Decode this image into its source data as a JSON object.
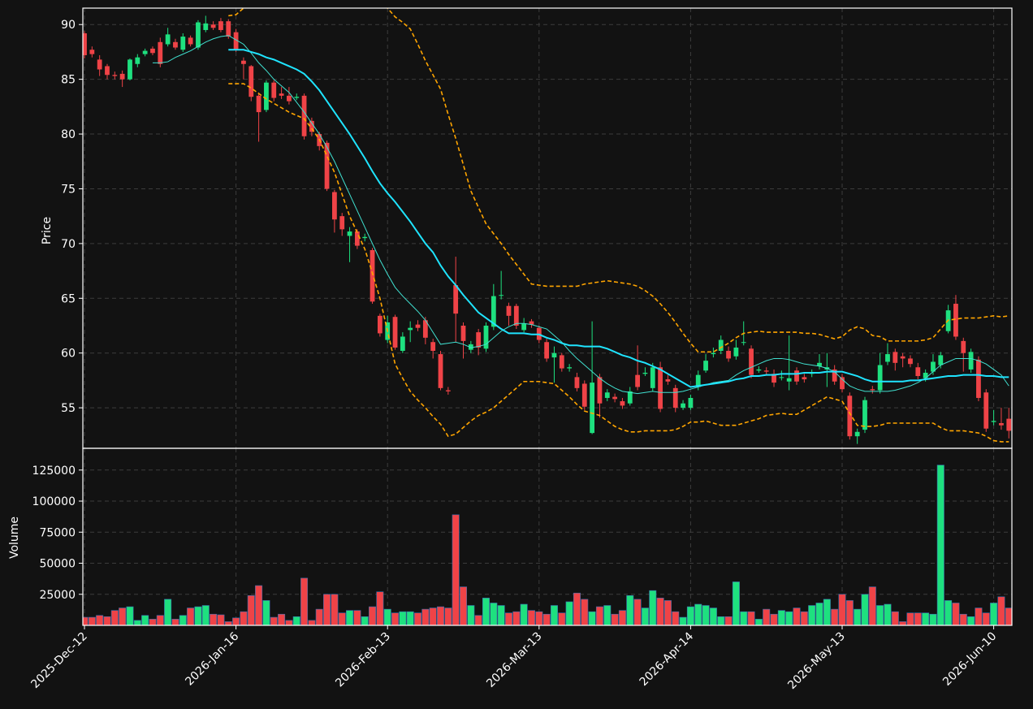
{
  "chart_data": {
    "type": "candlestick",
    "categories": [
      "2025-Dec-12",
      null,
      null,
      null,
      null,
      null,
      null,
      null,
      null,
      null,
      null,
      null,
      null,
      null,
      null,
      null,
      null,
      null,
      null,
      null,
      "2026-Jan-16",
      null,
      null,
      null,
      null,
      null,
      null,
      null,
      null,
      null,
      null,
      null,
      null,
      null,
      null,
      null,
      null,
      null,
      null,
      null,
      "2026-Feb-13",
      null,
      null,
      null,
      null,
      null,
      null,
      null,
      null,
      null,
      null,
      null,
      null,
      null,
      null,
      null,
      null,
      null,
      null,
      null,
      "2026-Mar-13",
      null,
      null,
      null,
      null,
      null,
      null,
      null,
      null,
      null,
      null,
      null,
      null,
      null,
      null,
      null,
      null,
      null,
      null,
      null,
      "2026-Apr-14",
      null,
      null,
      null,
      null,
      null,
      null,
      null,
      null,
      null,
      null,
      null,
      null,
      null,
      null,
      null,
      null,
      null,
      null,
      null,
      "2026-May-13",
      null,
      null,
      null,
      null,
      null,
      null,
      null,
      null,
      null,
      null,
      null,
      null,
      null,
      null,
      null,
      null,
      null,
      null,
      null,
      "2026-Jun-10",
      null,
      null
    ],
    "ylabel": "Price",
    "ylim": [
      51.3,
      91.5
    ],
    "yticks": [
      55,
      60,
      65,
      70,
      75,
      80,
      85,
      90
    ],
    "grid": true,
    "up_color": "#1ee07f",
    "down_color": "#ef4347",
    "open": [
      89.2,
      87.7,
      86.8,
      86.2,
      85.4,
      85.5,
      85.0,
      86.4,
      87.3,
      87.8,
      88.4,
      88.2,
      88.4,
      87.7,
      88.8,
      87.9,
      89.5,
      90.0,
      90.3,
      90.3,
      89.3,
      86.7,
      86.2,
      83.5,
      82.2,
      84.7,
      83.7,
      83.5,
      83.3,
      83.5,
      81.2,
      80.0,
      79.2,
      74.7,
      72.5,
      70.7,
      71.1,
      70.5,
      69.4,
      63.4,
      61.2,
      63.3,
      60.2,
      62.1,
      62.6,
      63.0,
      61.0,
      59.9,
      56.6,
      66.2,
      62.5,
      60.3,
      61.9,
      60.4,
      62.4,
      65.3,
      64.3,
      64.3,
      62.1,
      62.9,
      62.3,
      61.0,
      59.6,
      59.8,
      58.6,
      57.8,
      57.2,
      52.7,
      57.8,
      55.9,
      56.0,
      55.6,
      55.4,
      58.0,
      58.1,
      56.8,
      58.7,
      57.6,
      56.8,
      55.0,
      55.0,
      56.9,
      58.4,
      59.9,
      60.2,
      60.2,
      59.7,
      61.0,
      60.4,
      58.4,
      58.4,
      58.1,
      57.8,
      57.4,
      58.4,
      57.8,
      58.1,
      58.8,
      58.5,
      58.5,
      57.8,
      56.1,
      52.4,
      53.0,
      56.7,
      56.6,
      59.2,
      60.1,
      59.7,
      59.5,
      58.7,
      57.7,
      58.3,
      58.9,
      62.0,
      64.5,
      61.1,
      58.5,
      59.4,
      56.4,
      53.7,
      53.6,
      54.0
    ],
    "high": [
      89.4,
      88.0,
      87.2,
      86.4,
      85.7,
      85.8,
      86.9,
      87.3,
      87.8,
      88.0,
      88.8,
      89.7,
      88.7,
      89.2,
      89.0,
      90.4,
      90.8,
      90.3,
      90.6,
      90.5,
      89.6,
      87.0,
      86.3,
      83.8,
      84.9,
      84.9,
      84.3,
      84.3,
      83.7,
      83.7,
      81.5,
      80.2,
      79.4,
      74.9,
      72.8,
      71.5,
      71.3,
      70.9,
      69.6,
      63.6,
      63.4,
      63.5,
      61.9,
      62.9,
      63.0,
      63.3,
      61.3,
      60.2,
      56.9,
      68.8,
      62.8,
      61.1,
      62.2,
      62.8,
      66.3,
      67.5,
      64.6,
      64.5,
      63.2,
      63.1,
      62.5,
      61.3,
      60.6,
      60.0,
      59.0,
      58.2,
      57.5,
      62.9,
      58.1,
      56.7,
      56.3,
      55.9,
      56.9,
      60.7,
      58.7,
      59.1,
      59.2,
      58.0,
      57.1,
      55.7,
      56.2,
      58.4,
      59.9,
      60.5,
      61.6,
      60.6,
      61.2,
      62.9,
      60.7,
      58.8,
      58.7,
      58.5,
      58.4,
      61.6,
      58.7,
      58.1,
      58.5,
      59.9,
      60.0,
      58.9,
      58.1,
      56.4,
      53.1,
      56.0,
      57.0,
      60.0,
      60.9,
      60.4,
      60.0,
      59.8,
      59.1,
      58.5,
      59.9,
      60.1,
      64.4,
      65.3,
      61.4,
      60.4,
      59.7,
      56.7,
      54.8,
      55.0,
      55.0
    ],
    "low": [
      86.9,
      87.0,
      85.3,
      85.0,
      85.0,
      84.3,
      84.9,
      86.1,
      87.1,
      87.2,
      86.1,
      88.0,
      87.7,
      87.5,
      88.0,
      87.7,
      89.3,
      89.5,
      89.3,
      88.7,
      87.5,
      85.0,
      83.0,
      79.3,
      82.0,
      83.0,
      83.2,
      82.7,
      83.1,
      79.5,
      79.8,
      78.5,
      74.8,
      71.0,
      70.7,
      68.3,
      69.5,
      70.2,
      64.5,
      61.5,
      60.9,
      60.3,
      60.0,
      61.0,
      62.0,
      60.8,
      59.5,
      56.6,
      56.2,
      61.0,
      59.5,
      60.0,
      59.8,
      60.1,
      62.1,
      64.9,
      62.5,
      62.2,
      61.9,
      62.3,
      60.9,
      59.2,
      57.3,
      58.3,
      58.3,
      56.5,
      54.8,
      52.6,
      54.1,
      55.6,
      55.5,
      54.9,
      55.2,
      56.6,
      57.9,
      56.5,
      54.6,
      57.1,
      54.6,
      54.8,
      54.8,
      56.6,
      58.2,
      59.6,
      59.9,
      59.2,
      59.4,
      60.7,
      57.7,
      58.2,
      58.0,
      56.9,
      57.5,
      56.6,
      57.1,
      57.3,
      57.8,
      58.5,
      56.9,
      57.1,
      56.4,
      52.1,
      51.7,
      52.7,
      56.3,
      56.3,
      58.9,
      58.4,
      58.7,
      58.7,
      57.6,
      57.4,
      58.0,
      58.6,
      61.8,
      61.2,
      58.3,
      58.2,
      55.6,
      52.8,
      53.4,
      53.0,
      52.2
    ],
    "close": [
      87.2,
      87.3,
      85.9,
      85.4,
      85.3,
      85.0,
      86.8,
      87.0,
      87.6,
      87.4,
      86.4,
      89.1,
      87.9,
      88.9,
      88.2,
      90.2,
      90.1,
      89.7,
      89.5,
      88.9,
      87.7,
      86.4,
      83.4,
      82.0,
      84.7,
      83.3,
      83.5,
      83.0,
      83.4,
      79.8,
      80.2,
      78.9,
      75.0,
      72.2,
      71.3,
      71.1,
      69.8,
      70.6,
      64.7,
      61.8,
      62.8,
      60.5,
      61.5,
      62.3,
      62.3,
      61.4,
      60.2,
      56.8,
      56.5,
      63.6,
      61.1,
      60.8,
      60.5,
      62.5,
      65.2,
      65.3,
      63.4,
      62.5,
      62.7,
      62.6,
      61.2,
      59.5,
      60.0,
      58.6,
      58.7,
      56.8,
      55.1,
      57.3,
      55.4,
      56.4,
      55.8,
      55.2,
      56.5,
      56.9,
      58.2,
      58.7,
      54.9,
      57.4,
      55.0,
      55.4,
      55.9,
      58.0,
      59.3,
      60.0,
      61.2,
      59.5,
      60.5,
      61.0,
      58.0,
      58.5,
      58.3,
      57.3,
      57.8,
      57.7,
      57.4,
      57.6,
      58.2,
      59.1,
      58.7,
      57.4,
      56.7,
      52.4,
      52.8,
      55.7,
      56.6,
      58.9,
      59.9,
      59.1,
      59.5,
      59.0,
      57.9,
      58.2,
      59.2,
      59.8,
      63.9,
      61.5,
      60.0,
      60.1,
      55.9,
      53.1,
      53.8,
      53.4,
      52.9
    ],
    "overlays": [
      {
        "color": "#ffa500",
        "width": 1.6,
        "dash": true,
        "values": [
          null,
          null,
          null,
          null,
          null,
          null,
          null,
          null,
          null,
          null,
          null,
          null,
          null,
          null,
          null,
          null,
          null,
          null,
          null,
          90.8,
          90.9,
          91.5,
          92.3,
          93.0,
          93.8,
          94.5,
          95.0,
          95.5,
          96.0,
          96.4,
          96.8,
          97.0,
          97.0,
          96.8,
          96.5,
          96.0,
          95.3,
          94.5,
          93.5,
          92.5,
          91.5,
          90.7,
          90.2,
          89.6,
          88.2,
          86.7,
          85.4,
          84.1,
          81.8,
          79.6,
          77.2,
          74.8,
          73.3,
          71.8,
          70.9,
          70.0,
          69.0,
          68.1,
          67.2,
          66.3,
          66.2,
          66.1,
          66.1,
          66.1,
          66.1,
          66.1,
          66.3,
          66.4,
          66.5,
          66.6,
          66.5,
          66.4,
          66.3,
          66.1,
          65.7,
          65.2,
          64.5,
          63.7,
          62.8,
          61.8,
          60.9,
          60.1,
          60.1,
          60.1,
          60.5,
          60.9,
          61.4,
          61.8,
          61.9,
          62.0,
          61.9,
          61.9,
          61.9,
          61.9,
          61.9,
          61.8,
          61.8,
          61.7,
          61.5,
          61.3,
          61.5,
          62.1,
          62.4,
          62.2,
          61.6,
          61.5,
          61.1,
          61.1,
          61.1,
          61.1,
          61.1,
          61.2,
          61.4,
          62.2,
          63.0,
          63.1,
          63.2,
          63.2,
          63.2,
          63.3,
          63.4,
          63.3,
          63.4
        ]
      },
      {
        "color": "#ffa500",
        "width": 1.6,
        "dash": true,
        "values": [
          null,
          null,
          null,
          null,
          null,
          null,
          null,
          null,
          null,
          null,
          null,
          null,
          null,
          null,
          null,
          null,
          null,
          null,
          null,
          84.6,
          84.6,
          84.6,
          84.2,
          83.7,
          83.2,
          82.8,
          82.4,
          82.0,
          81.7,
          81.4,
          80.5,
          79.5,
          78.0,
          76.5,
          74.5,
          72.5,
          71.0,
          69.5,
          67.3,
          65.0,
          62.0,
          59.0,
          57.7,
          56.5,
          55.7,
          55.0,
          54.2,
          53.5,
          52.4,
          52.6,
          53.2,
          53.8,
          54.3,
          54.6,
          55.0,
          55.6,
          56.2,
          56.8,
          57.4,
          57.4,
          57.4,
          57.3,
          57.2,
          56.6,
          56.0,
          55.3,
          54.7,
          54.5,
          54.3,
          53.8,
          53.3,
          53.0,
          52.8,
          52.8,
          52.9,
          52.9,
          52.9,
          52.9,
          53.0,
          53.3,
          53.7,
          53.7,
          53.8,
          53.6,
          53.4,
          53.4,
          53.4,
          53.6,
          53.8,
          54.0,
          54.3,
          54.4,
          54.5,
          54.4,
          54.4,
          54.8,
          55.2,
          55.6,
          56.0,
          55.8,
          55.6,
          54.5,
          53.4,
          53.3,
          53.3,
          53.4,
          53.6,
          53.6,
          53.6,
          53.6,
          53.6,
          53.6,
          53.6,
          53.2,
          52.9,
          52.9,
          52.9,
          52.8,
          52.7,
          52.4,
          52.0,
          51.9,
          51.9
        ]
      },
      {
        "color": "#40e0d0",
        "width": 1,
        "dash": false,
        "values": [
          null,
          null,
          null,
          null,
          null,
          null,
          null,
          null,
          null,
          86.5,
          86.5,
          86.6,
          87.0,
          87.3,
          87.6,
          88.0,
          88.4,
          88.7,
          88.9,
          89.0,
          88.6,
          88.2,
          87.4,
          86.5,
          85.8,
          85.0,
          84.4,
          83.8,
          82.9,
          82.0,
          81.0,
          80.0,
          78.8,
          77.5,
          76.0,
          74.5,
          73.0,
          71.5,
          70.0,
          68.5,
          67.2,
          66.0,
          65.2,
          64.5,
          63.8,
          63.0,
          61.9,
          60.8,
          60.9,
          61.0,
          60.8,
          60.5,
          60.6,
          60.8,
          61.4,
          62.0,
          62.4,
          62.7,
          62.7,
          62.6,
          62.4,
          62.2,
          61.6,
          61.0,
          60.2,
          59.5,
          58.9,
          58.3,
          57.7,
          57.2,
          56.8,
          56.5,
          56.4,
          56.3,
          56.4,
          56.5,
          56.4,
          56.4,
          56.4,
          56.5,
          56.7,
          56.9,
          57.1,
          57.3,
          57.4,
          57.5,
          58.0,
          58.4,
          58.7,
          59.0,
          59.3,
          59.5,
          59.5,
          59.4,
          59.2,
          59.0,
          58.9,
          58.8,
          58.6,
          58.3,
          57.6,
          57.0,
          56.7,
          56.5,
          56.5,
          56.5,
          56.5,
          56.6,
          56.8,
          57.0,
          57.3,
          57.7,
          58.3,
          58.9,
          59.2,
          59.5,
          59.5,
          59.5,
          59.3,
          59.0,
          58.5,
          58.0,
          57.0
        ]
      },
      {
        "color": "#1fe4ff",
        "width": 2,
        "dash": false,
        "values": [
          null,
          null,
          null,
          null,
          null,
          null,
          null,
          null,
          null,
          null,
          null,
          null,
          null,
          null,
          null,
          null,
          null,
          null,
          null,
          87.7,
          87.7,
          87.7,
          87.5,
          87.3,
          87.0,
          86.8,
          86.5,
          86.2,
          85.9,
          85.5,
          84.8,
          84.0,
          83.0,
          82.0,
          81.0,
          80.0,
          78.9,
          77.8,
          76.6,
          75.5,
          74.6,
          73.8,
          72.9,
          72.0,
          71.0,
          70.0,
          69.2,
          68.0,
          67.0,
          66.2,
          65.3,
          64.5,
          63.7,
          63.2,
          62.7,
          62.2,
          61.8,
          61.8,
          61.8,
          61.7,
          61.7,
          61.4,
          61.2,
          60.9,
          60.7,
          60.7,
          60.6,
          60.6,
          60.6,
          60.4,
          60.1,
          59.8,
          59.6,
          59.3,
          59.1,
          58.8,
          58.5,
          58.1,
          57.7,
          57.3,
          56.9,
          57.0,
          57.1,
          57.2,
          57.3,
          57.4,
          57.6,
          57.7,
          57.9,
          57.9,
          58.0,
          58.0,
          58.1,
          58.1,
          58.1,
          58.2,
          58.2,
          58.2,
          58.3,
          58.3,
          58.3,
          58.1,
          57.9,
          57.6,
          57.4,
          57.4,
          57.4,
          57.4,
          57.4,
          57.5,
          57.5,
          57.6,
          57.7,
          57.8,
          57.9,
          57.9,
          58.0,
          58.0,
          58.0,
          57.9,
          57.9,
          57.8,
          57.8
        ]
      }
    ],
    "volume": {
      "ylabel": "Volume",
      "ylim": [
        0,
        142500
      ],
      "yticks": [
        25000,
        50000,
        75000,
        100000,
        125000
      ],
      "edge_color": "#3a6fb0",
      "values": [
        6500,
        6500,
        8000,
        7000,
        12000,
        14000,
        15000,
        4000,
        8000,
        5000,
        8000,
        21000,
        5000,
        8000,
        14000,
        15000,
        16000,
        9000,
        8500,
        3000,
        6000,
        11000,
        24000,
        32000,
        20000,
        6500,
        9000,
        4000,
        7000,
        38000,
        4000,
        13000,
        25000,
        25000,
        10000,
        12000,
        12000,
        7000,
        15000,
        27000,
        13000,
        10000,
        11000,
        11000,
        10000,
        13000,
        14000,
        15000,
        14000,
        89000,
        31000,
        16000,
        8000,
        22000,
        18000,
        16000,
        10000,
        11000,
        17000,
        12000,
        11000,
        9000,
        16000,
        10000,
        19000,
        26000,
        21000,
        11000,
        15000,
        16000,
        9000,
        12000,
        24000,
        21000,
        14000,
        28000,
        22000,
        20000,
        11000,
        6500,
        15000,
        17000,
        16000,
        14000,
        7000,
        7000,
        35000,
        11000,
        11000,
        5000,
        13000,
        9000,
        12000,
        11000,
        14000,
        11000,
        16000,
        18000,
        21000,
        13000,
        25000,
        20000,
        13000,
        25000,
        31000,
        16000,
        17000,
        11000,
        3000,
        10000,
        10000,
        10000,
        9000,
        129000,
        20000,
        18000,
        9000,
        7000,
        14000,
        10000,
        18000,
        23000,
        14000
      ]
    }
  }
}
